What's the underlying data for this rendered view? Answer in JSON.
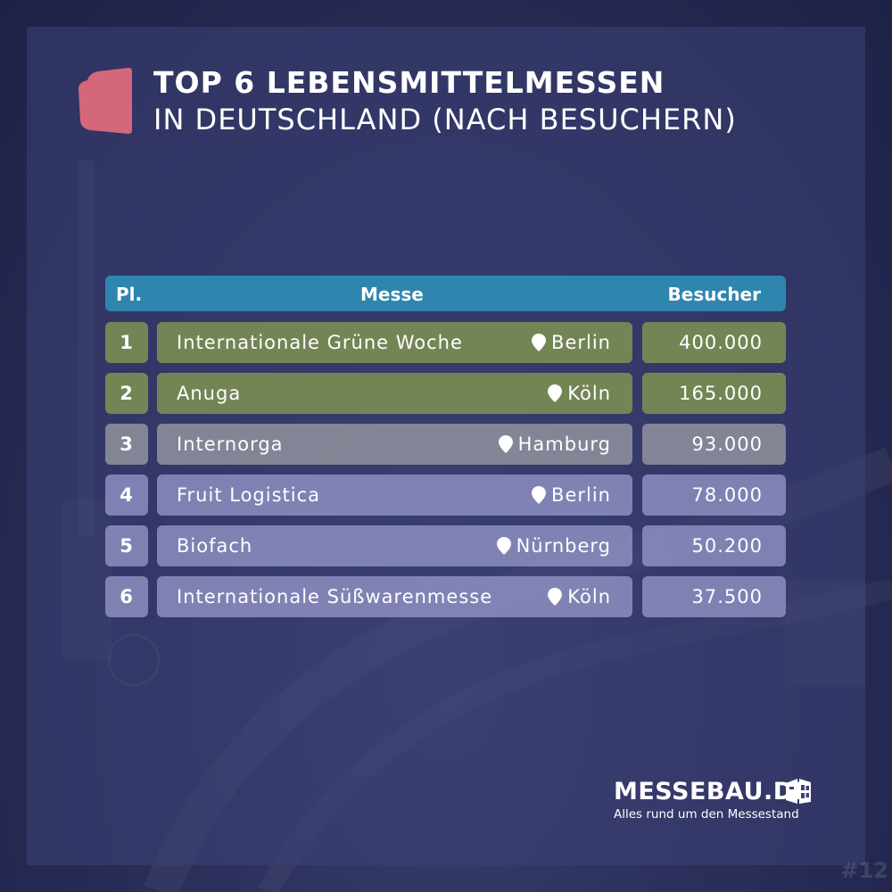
{
  "title": {
    "line1": "TOP 6 LEBENSMITTELMESSEN",
    "line2": "IN DEUTSCHLAND (NACH BESUCHERN)"
  },
  "table": {
    "headers": {
      "rank": "Pl.",
      "name": "Messe",
      "visitors": "Besucher"
    },
    "rows": [
      {
        "rank": "1",
        "name": "Internationale Grüne Woche",
        "city": "Berlin",
        "visitors": "400.000"
      },
      {
        "rank": "2",
        "name": "Anuga",
        "city": "Köln",
        "visitors": "165.000"
      },
      {
        "rank": "3",
        "name": "Internorga",
        "city": "Hamburg",
        "visitors": "93.000"
      },
      {
        "rank": "4",
        "name": "Fruit Logistica",
        "city": "Berlin",
        "visitors": "78.000"
      },
      {
        "rank": "5",
        "name": "Biofach",
        "city": "Nürnberg",
        "visitors": "50.200"
      },
      {
        "rank": "6",
        "name": "Internationale Süßwarenmesse",
        "city": "Köln",
        "visitors": "37.500"
      }
    ]
  },
  "logo": {
    "name": "MESSEBAU.DE",
    "tagline": "Alles rund um den Messestand"
  },
  "corner_text": "#12",
  "colors": {
    "accent_shape": "#d4677a",
    "header_bar": "#2e85ad",
    "row_green": "#798c54",
    "row_gray": "#96989f",
    "row_lavender": "#9696c8"
  },
  "icons": {
    "location": "location-pin-icon",
    "logo": "messebau-logo-icon"
  }
}
